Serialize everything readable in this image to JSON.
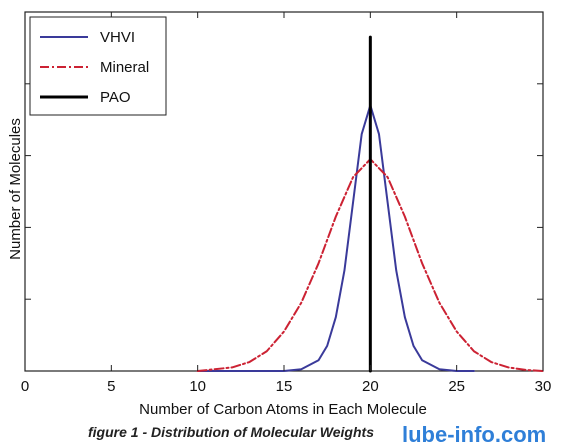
{
  "caption": "figure 1 - Distribution of Molecular Weights",
  "watermark": "lube-info.com",
  "chart_data": {
    "type": "line",
    "title": "",
    "xlabel": "Number of Carbon Atoms in Each Molecule",
    "ylabel": "Number of Molecules",
    "xlim": [
      0,
      30
    ],
    "ylim": [
      0,
      1
    ],
    "xticks": [
      0,
      5,
      10,
      15,
      20,
      25,
      30
    ],
    "grid": false,
    "legend_position": "top-left",
    "series": [
      {
        "name": "VHVI",
        "color": "#3a3a9a",
        "style": "solid",
        "x": [
          10,
          15,
          16,
          17,
          17.5,
          18,
          18.5,
          19,
          19.5,
          20,
          20.5,
          21,
          21.5,
          22,
          22.5,
          23,
          24,
          25,
          26
        ],
        "y": [
          0,
          0,
          0.005,
          0.03,
          0.07,
          0.15,
          0.28,
          0.47,
          0.66,
          0.74,
          0.66,
          0.47,
          0.28,
          0.15,
          0.07,
          0.03,
          0.005,
          0,
          0
        ]
      },
      {
        "name": "Mineral",
        "color": "#cc2233",
        "style": "dashdot",
        "x": [
          10,
          12,
          13,
          14,
          15,
          16,
          17,
          18,
          19,
          20,
          21,
          22,
          23,
          24,
          25,
          26,
          27,
          28,
          29,
          30
        ],
        "y": [
          0,
          0.01,
          0.025,
          0.055,
          0.11,
          0.19,
          0.3,
          0.43,
          0.54,
          0.59,
          0.54,
          0.43,
          0.3,
          0.19,
          0.11,
          0.055,
          0.025,
          0.01,
          0.003,
          0
        ]
      },
      {
        "name": "PAO",
        "color": "#000000",
        "style": "solid",
        "x": [
          20,
          20
        ],
        "y": [
          0,
          0.93
        ]
      }
    ]
  }
}
